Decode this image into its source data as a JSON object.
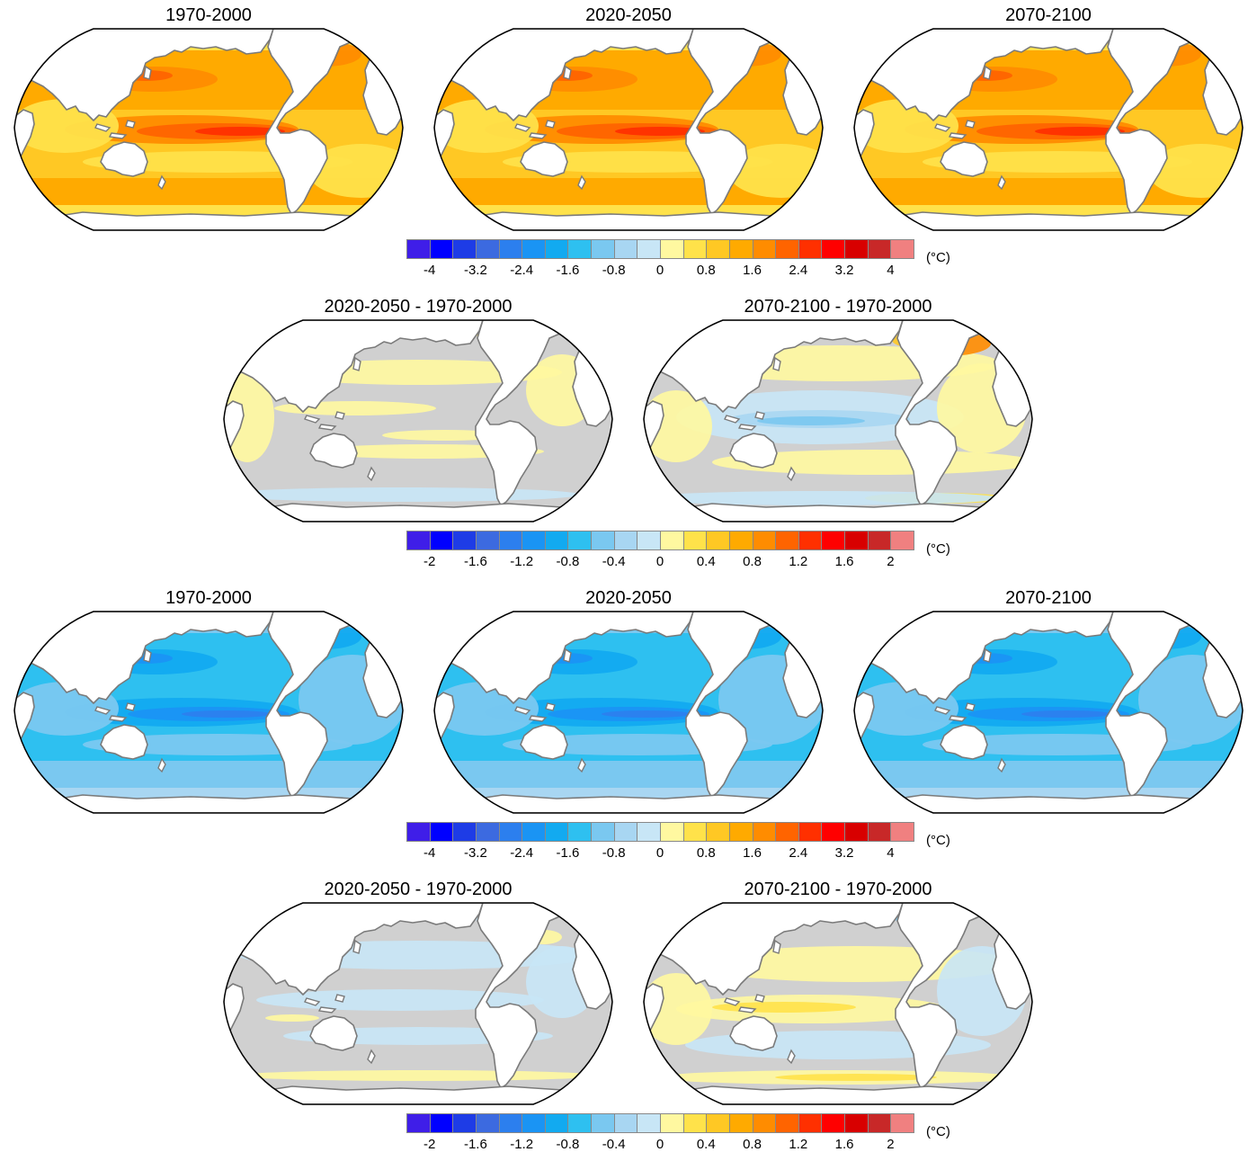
{
  "colors": {
    "land": "#ffffff",
    "coast": "#7a7a7a",
    "outline": "#000000",
    "neutral": "#d0d0d0",
    "scale": [
      "#3f1ee8",
      "#0000ff",
      "#1e3ce6",
      "#3c6ae0",
      "#2c7fee",
      "#1a94f4",
      "#12aaf0",
      "#2ec0f0",
      "#7ac8f0",
      "#a8d6f2",
      "#c8e6f6",
      "#fff8a0",
      "#ffe24a",
      "#ffc824",
      "#ffaa00",
      "#ff8c00",
      "#ff6400",
      "#ff3000",
      "#ff0000",
      "#d80000",
      "#c82828",
      "#f08080"
    ]
  },
  "colorbars": [
    {
      "ticks": [
        "-4",
        "-3.2",
        "-2.4",
        "-1.6",
        "-0.8",
        "0",
        "0.8",
        "1.6",
        "2.4",
        "3.2",
        "4"
      ],
      "unit": "(°C)"
    },
    {
      "ticks": [
        "-2",
        "-1.6",
        "-1.2",
        "-0.8",
        "-0.4",
        "0",
        "0.4",
        "0.8",
        "1.2",
        "1.6",
        "2"
      ],
      "unit": "(°C)"
    },
    {
      "ticks": [
        "-4",
        "-3.2",
        "-2.4",
        "-1.6",
        "-0.8",
        "0",
        "0.8",
        "1.6",
        "2.4",
        "3.2",
        "4"
      ],
      "unit": "(°C)"
    },
    {
      "ticks": [
        "-2",
        "-1.6",
        "-1.2",
        "-0.8",
        "-0.4",
        "0",
        "0.4",
        "0.8",
        "1.2",
        "1.6",
        "2"
      ],
      "unit": "(°C)"
    }
  ],
  "panels": [
    {
      "title": "1970-2000",
      "style": "warm"
    },
    {
      "title": "2020-2050",
      "style": "warm"
    },
    {
      "title": "2070-2100",
      "style": "warm"
    },
    {
      "title": "2020-2050 - 1970-2000",
      "style": "diffA"
    },
    {
      "title": "2070-2100 - 1970-2000",
      "style": "diffB"
    },
    {
      "title": "1970-2000",
      "style": "cool"
    },
    {
      "title": "2020-2050",
      "style": "cool"
    },
    {
      "title": "2070-2100",
      "style": "cool"
    },
    {
      "title": "2020-2050 - 1970-2000",
      "style": "diffC"
    },
    {
      "title": "2070-2100 - 1970-2000",
      "style": "diffD"
    }
  ]
}
